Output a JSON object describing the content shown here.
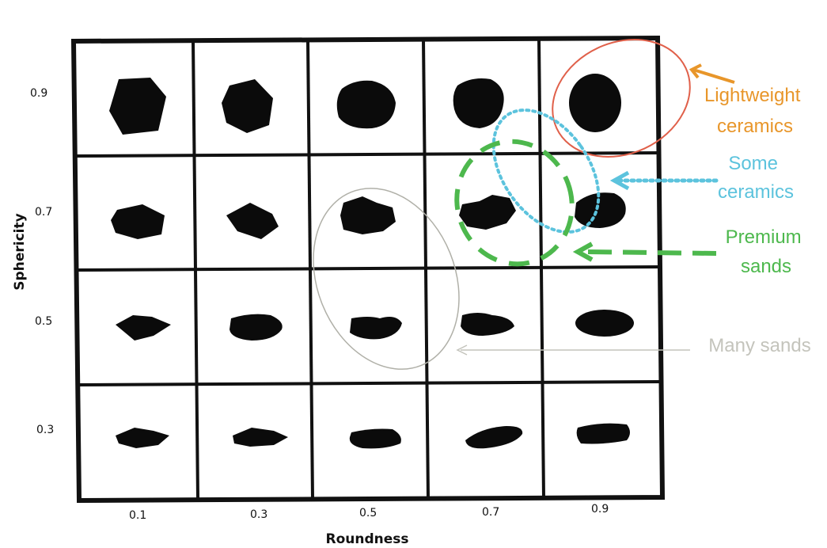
{
  "chart_data": {
    "type": "diagram",
    "xlabel": "Roundness",
    "ylabel": "Sphericity",
    "x_ticks": [
      "0.1",
      "0.3",
      "0.5",
      "0.7",
      "0.9"
    ],
    "y_ticks": [
      "0.9",
      "0.7",
      "0.5",
      "0.3"
    ],
    "annotations": [
      {
        "name": "lightweight-ceramics",
        "lines": [
          "Lightweight",
          "ceramics"
        ],
        "color": "#e8962a",
        "outline_color": "#e0604a",
        "style": "solid-thin"
      },
      {
        "name": "some-ceramics",
        "lines": [
          "Some",
          "ceramics"
        ],
        "color": "#5cc3dd",
        "outline_color": "#5cc3dd",
        "style": "dotted"
      },
      {
        "name": "premium-sands",
        "lines": [
          "Premium",
          "sands"
        ],
        "color": "#4db84d",
        "outline_color": "#4db84d",
        "style": "dashed"
      },
      {
        "name": "many-sands",
        "lines": [
          "Many sands"
        ],
        "color": "#c4c4bc",
        "outline_color": "#b0b0a8",
        "style": "solid-thin"
      }
    ]
  }
}
